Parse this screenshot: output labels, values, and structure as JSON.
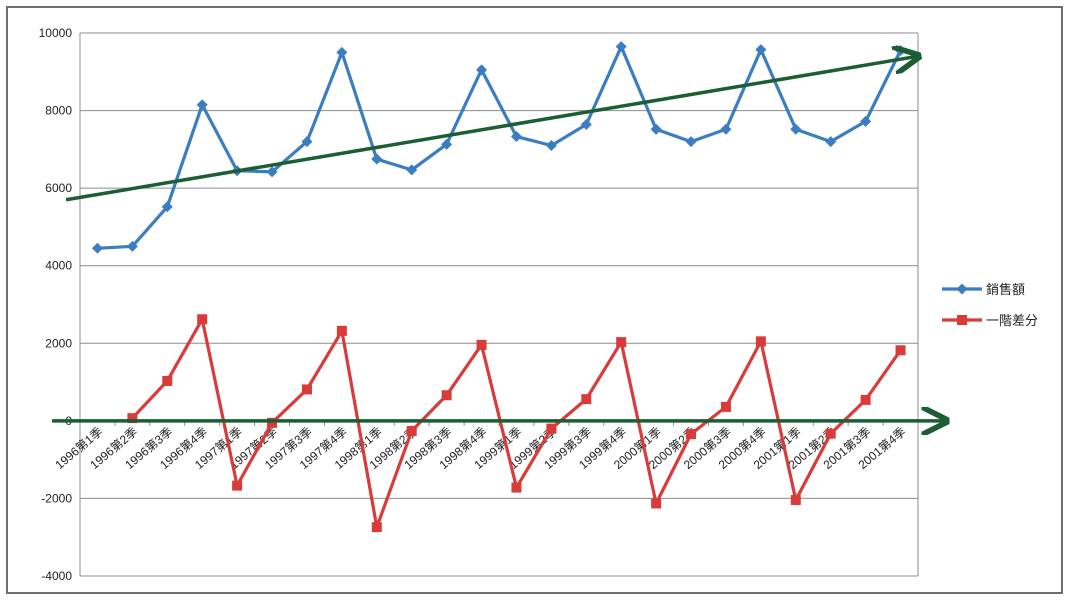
{
  "chart_data": {
    "type": "line",
    "title": "",
    "xlabel": "",
    "ylabel": "",
    "ylim": [
      -4000,
      10000
    ],
    "yticks": [
      -4000,
      -2000,
      0,
      2000,
      4000,
      6000,
      8000,
      10000
    ],
    "grid": true,
    "legend_position": "right",
    "categories": [
      "1996第1季",
      "1996第2季",
      "1996第3季",
      "1996第4季",
      "1997第1季",
      "1997第2季",
      "1997第3季",
      "1997第4季",
      "1998第1季",
      "1998第2季",
      "1998第3季",
      "1998第4季",
      "1999第1季",
      "1999第2季",
      "1999第3季",
      "1999第4季",
      "2000第1季",
      "2000第2季",
      "2000第3季",
      "2000第4季",
      "2001第1季",
      "2001第2季",
      "2001第3季",
      "2001第4季"
    ],
    "series": [
      {
        "name": "銷售額",
        "color": "#3a7dc0",
        "marker": "diamond",
        "values": [
          4450,
          4500,
          5520,
          8150,
          6450,
          6420,
          7200,
          9500,
          6750,
          6470,
          7130,
          9050,
          7330,
          7100,
          7640,
          9650,
          7520,
          7200,
          7520,
          9570,
          7520,
          7200,
          7720,
          9550
        ]
      },
      {
        "name": "一階差分",
        "color": "#d93b3b",
        "marker": "square",
        "values": [
          null,
          70,
          1030,
          2620,
          -1670,
          -50,
          810,
          2320,
          -2740,
          -260,
          660,
          1960,
          -1720,
          -200,
          560,
          2030,
          -2130,
          -340,
          360,
          2050,
          -2040,
          -330,
          540,
          1820
        ]
      }
    ],
    "annotations": [
      {
        "kind": "trend-arrow",
        "color": "#1b5e33",
        "from": [
          -0.9,
          5700
        ],
        "to": [
          23.5,
          9400
        ]
      },
      {
        "kind": "zero-arrow",
        "color": "#1b5e33",
        "from": [
          -1.3,
          0
        ],
        "to": [
          24.3,
          0
        ]
      }
    ]
  }
}
